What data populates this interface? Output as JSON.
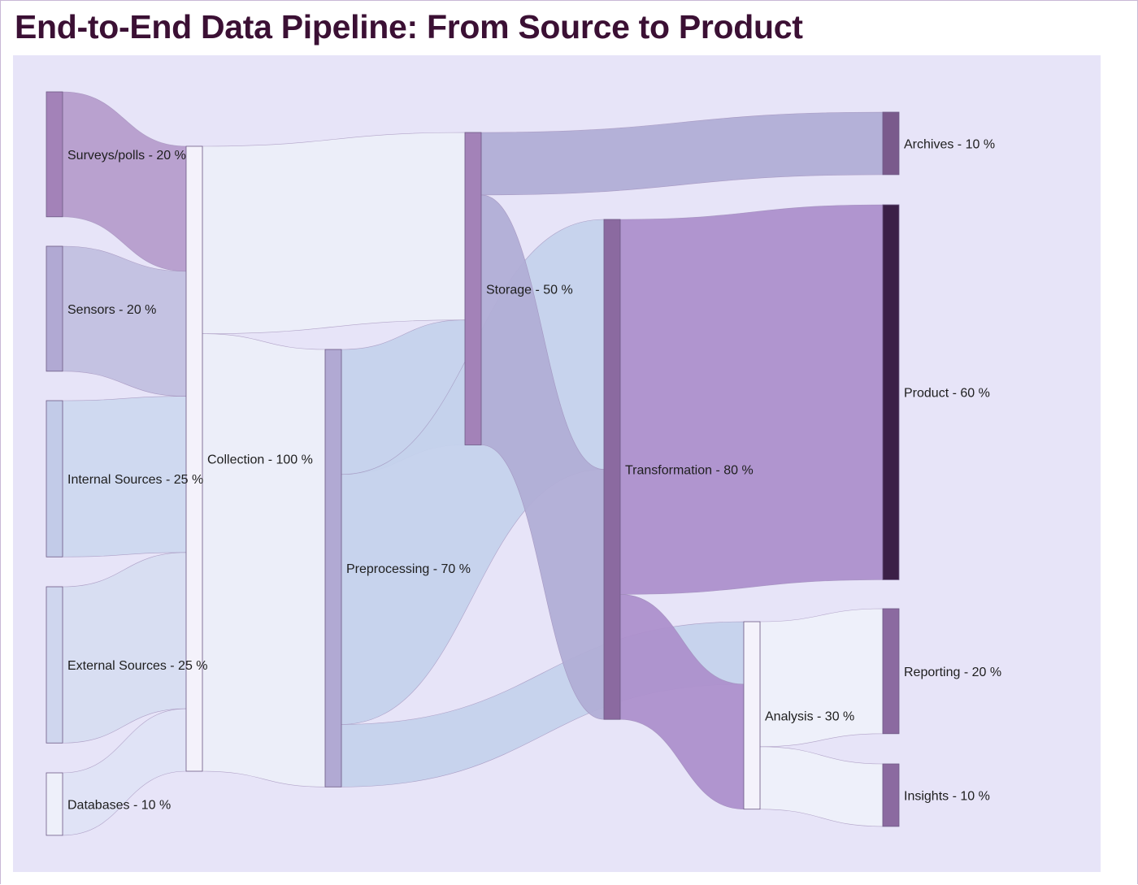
{
  "title": "End-to-End Data Pipeline: From Source to Product",
  "chart_data": {
    "type": "sankey",
    "unit": "%",
    "nodes": [
      {
        "id": "surveys",
        "label": "Surveys/polls",
        "value": 20,
        "color": "#a382b8"
      },
      {
        "id": "sensors",
        "label": "Sensors",
        "value": 20,
        "color": "#b1a9d3"
      },
      {
        "id": "internal",
        "label": "Internal Sources",
        "value": 25,
        "color": "#c2cbe8"
      },
      {
        "id": "external",
        "label": "External Sources",
        "value": 25,
        "color": "#cfd6ee"
      },
      {
        "id": "databases",
        "label": "Databases",
        "value": 10,
        "color": "#eef0fa"
      },
      {
        "id": "collection",
        "label": "Collection",
        "value": 100,
        "color": "#f4f2fb"
      },
      {
        "id": "preprocessing",
        "label": "Preprocessing",
        "value": 70,
        "color": "#b1a9d3"
      },
      {
        "id": "storage",
        "label": "Storage",
        "value": 50,
        "color": "#a382b8"
      },
      {
        "id": "transformation",
        "label": "Transformation",
        "value": 80,
        "color": "#8b6aa0"
      },
      {
        "id": "analysis",
        "label": "Analysis",
        "value": 30,
        "color": "#f4f2fb"
      },
      {
        "id": "archives",
        "label": "Archives",
        "value": 10,
        "color": "#7a5a8c"
      },
      {
        "id": "product",
        "label": "Product",
        "value": 60,
        "color": "#3b1f47"
      },
      {
        "id": "reporting",
        "label": "Reporting",
        "value": 20,
        "color": "#8b6aa0"
      },
      {
        "id": "insights",
        "label": "Insights",
        "value": 10,
        "color": "#8b6aa0"
      }
    ],
    "links": [
      {
        "source": "surveys",
        "target": "collection",
        "value": 20,
        "color": "#b69dcc"
      },
      {
        "source": "sensors",
        "target": "collection",
        "value": 20,
        "color": "#c2c0e0"
      },
      {
        "source": "internal",
        "target": "collection",
        "value": 25,
        "color": "#cdd8ef"
      },
      {
        "source": "external",
        "target": "collection",
        "value": 25,
        "color": "#d7ddf1"
      },
      {
        "source": "databases",
        "target": "collection",
        "value": 10,
        "color": "#dfe3f5"
      },
      {
        "source": "collection",
        "target": "storage",
        "value": 30,
        "color": "#eceef9"
      },
      {
        "source": "collection",
        "target": "preprocessing",
        "value": 70,
        "color": "#eceef9"
      },
      {
        "source": "preprocessing",
        "target": "storage",
        "value": 20,
        "color": "#c5d2ec"
      },
      {
        "source": "preprocessing",
        "target": "transformation",
        "value": 40,
        "color": "#c5d2ec"
      },
      {
        "source": "preprocessing",
        "target": "analysis",
        "value": 10,
        "color": "#c5d2ec"
      },
      {
        "source": "storage",
        "target": "archives",
        "value": 10,
        "color": "#b1aed6"
      },
      {
        "source": "storage",
        "target": "transformation",
        "value": 40,
        "color": "#b1aed6"
      },
      {
        "source": "transformation",
        "target": "product",
        "value": 60,
        "color": "#ad90cc"
      },
      {
        "source": "transformation",
        "target": "analysis",
        "value": 20,
        "color": "#ad90cc"
      },
      {
        "source": "analysis",
        "target": "reporting",
        "value": 20,
        "color": "#eef0fa"
      },
      {
        "source": "analysis",
        "target": "insights",
        "value": 10,
        "color": "#eef0fa"
      }
    ]
  }
}
